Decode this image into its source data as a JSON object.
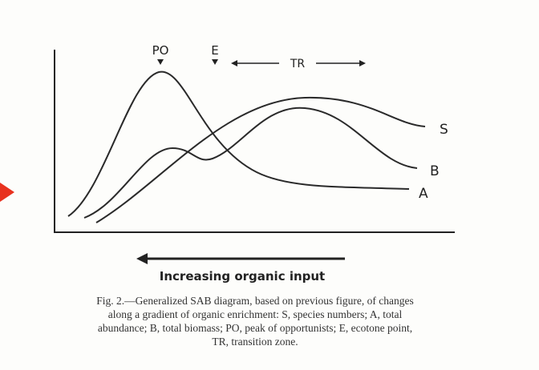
{
  "labels": {
    "peak": "PO",
    "ecotone": "E",
    "transition": "TR"
  },
  "curves": {
    "species": "S",
    "biomass": "B",
    "abundance": "A"
  },
  "axis_label": "Increasing organic input",
  "caption": [
    "Fig. 2.—Generalized SAB diagram, based on previous figure, of changes",
    "along a gradient of organic enrichment: S, species numbers; A, total",
    "abundance; B, total biomass; PO, peak of opportunists; E, ecotone point,",
    "TR, transition zone."
  ]
}
